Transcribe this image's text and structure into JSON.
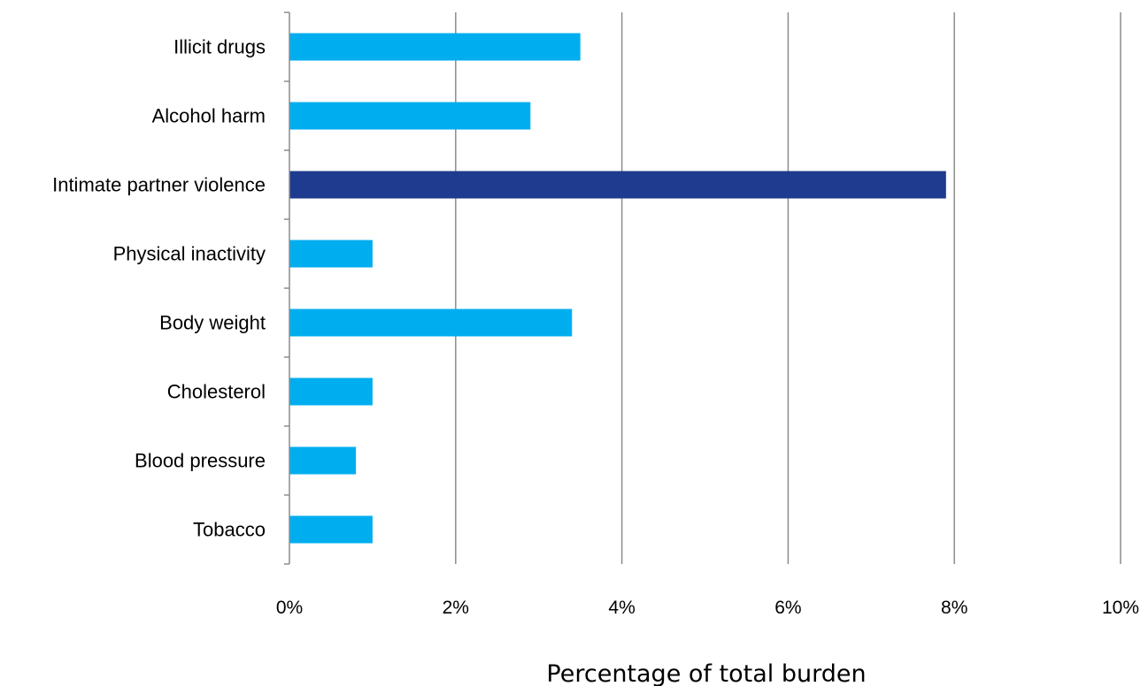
{
  "chart_data": {
    "type": "bar",
    "orientation": "horizontal",
    "title": "",
    "xlabel": "Percentage of total burden",
    "ylabel": "",
    "categories": [
      "Illicit drugs",
      "Alcohol harm",
      "Intimate partner violence",
      "Physical inactivity",
      "Body weight",
      "Cholesterol",
      "Blood pressure",
      "Tobacco"
    ],
    "values": [
      3.5,
      2.9,
      7.9,
      1.0,
      3.4,
      1.0,
      0.8,
      1.0
    ],
    "unit": "%",
    "xlim": [
      0,
      10
    ],
    "x_ticks": [
      0,
      2,
      4,
      6,
      8,
      10
    ],
    "x_tick_labels": [
      "0%",
      "2%",
      "4%",
      "6%",
      "8%",
      "10%"
    ],
    "grid": "vertical major gridlines",
    "legend": "none",
    "highlight_category": "Intimate partner violence",
    "colors": {
      "bar": "#00aeef",
      "highlight": "#1f3b8f",
      "grid": "#8c8c8c",
      "axis": "#8c8c8c"
    }
  }
}
